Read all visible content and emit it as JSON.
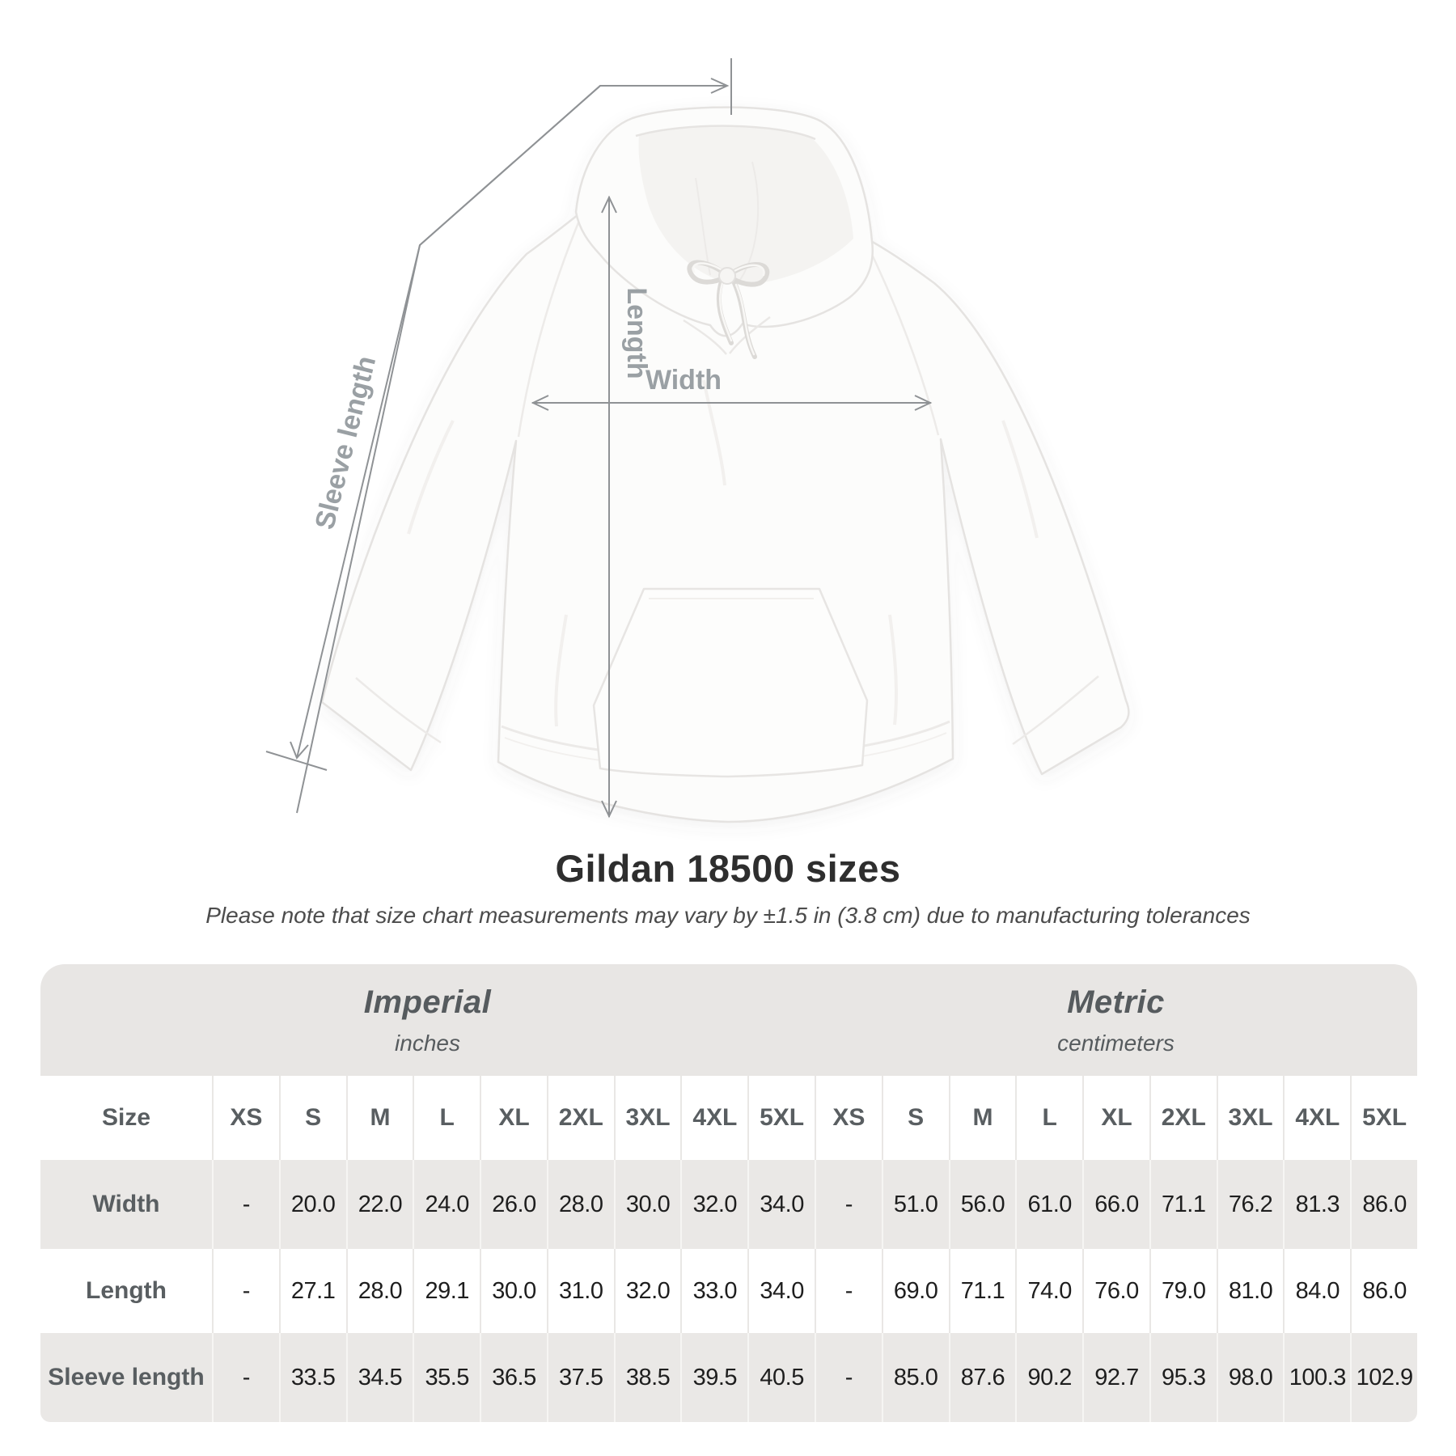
{
  "diagram": {
    "product": "white hooded sweatshirt, front flat lay",
    "labels": {
      "sleeve_length": "Sleeve length",
      "length": "Length",
      "width": "Width"
    },
    "line_color": "#8f9295",
    "label_color": "#9aa0a4"
  },
  "chart_data": {
    "type": "table",
    "title": "Gildan 18500 sizes",
    "subtitle": "Please note that size chart measurements may vary by ±1.5 in (3.8 cm) due to manufacturing tolerances",
    "size_column_label": "Size",
    "sizes": [
      "XS",
      "S",
      "M",
      "L",
      "XL",
      "2XL",
      "3XL",
      "4XL",
      "5XL"
    ],
    "unit_groups": [
      {
        "name": "Imperial",
        "unit": "inches"
      },
      {
        "name": "Metric",
        "unit": "centimeters"
      }
    ],
    "rows": [
      {
        "label": "Width",
        "imperial": [
          "-",
          "20.0",
          "22.0",
          "24.0",
          "26.0",
          "28.0",
          "30.0",
          "32.0",
          "34.0"
        ],
        "metric": [
          "-",
          "51.0",
          "56.0",
          "61.0",
          "66.0",
          "71.1",
          "76.2",
          "81.3",
          "86.0"
        ]
      },
      {
        "label": "Length",
        "imperial": [
          "-",
          "27.1",
          "28.0",
          "29.1",
          "30.0",
          "31.0",
          "32.0",
          "33.0",
          "34.0"
        ],
        "metric": [
          "-",
          "69.0",
          "71.1",
          "74.0",
          "76.0",
          "79.0",
          "81.0",
          "84.0",
          "86.0"
        ]
      },
      {
        "label": "Sleeve length",
        "imperial": [
          "-",
          "33.5",
          "34.5",
          "35.5",
          "36.5",
          "37.5",
          "38.5",
          "39.5",
          "40.5"
        ],
        "metric": [
          "-",
          "85.0",
          "87.6",
          "90.2",
          "92.7",
          "95.3",
          "98.0",
          "100.3",
          "102.9"
        ]
      }
    ],
    "colors": {
      "band_background": "#e8e6e4",
      "row_stripe": "#eae8e6",
      "header_text": "#595e61",
      "value_text": "#1e1e1e"
    }
  }
}
